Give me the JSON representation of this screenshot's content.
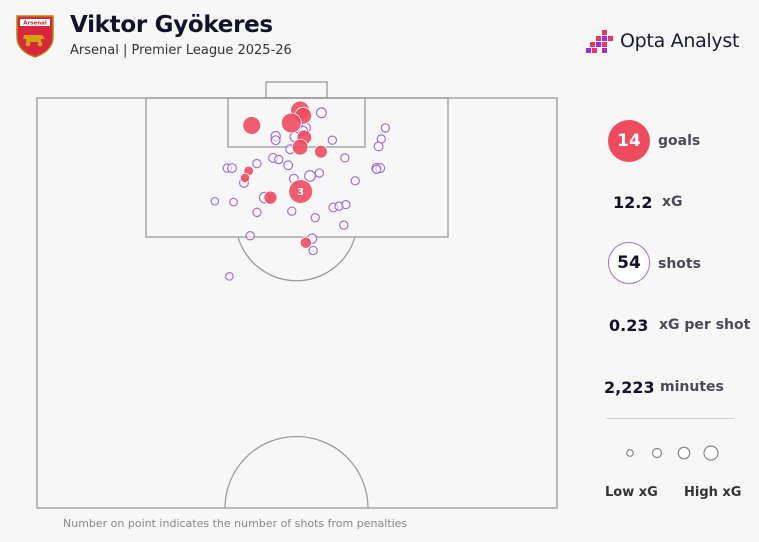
{
  "header": {
    "title": "Viktor Gyökeres",
    "subtitle": "Arsenal | Premier League 2025-26",
    "crest_text": "Arsenal",
    "brand": "Opta Analyst"
  },
  "stats": [
    {
      "value": "14",
      "label": "goals"
    },
    {
      "value": "12.2",
      "label": "xG"
    },
    {
      "value": "54",
      "label": "shots"
    },
    {
      "value": "0.23",
      "label": "xG per shot"
    },
    {
      "value": "2,223",
      "label": "minutes"
    }
  ],
  "legend": {
    "low": "Low xG",
    "high": "High xG"
  },
  "footnote": "Number on point indicates the number of shots from penalties",
  "colors": {
    "goal": "#ef4b5e",
    "shot": "#a46be0",
    "line": "#9a9a9a"
  },
  "chart_data": {
    "type": "scatter",
    "x_axis": "pitch width (0-100)",
    "y_axis": "distance from goal line (0-100 of half pitch shown)",
    "shots": [
      {
        "x": 50.6,
        "y": 3.1,
        "xg": 0.45,
        "goal": true
      },
      {
        "x": 51.2,
        "y": 4.3,
        "xg": 0.32,
        "goal": true
      },
      {
        "x": 48.9,
        "y": 6.1,
        "xg": 0.5,
        "goal": true
      },
      {
        "x": 41.3,
        "y": 6.7,
        "xg": 0.38,
        "goal": true
      },
      {
        "x": 51.4,
        "y": 9.6,
        "xg": 0.22,
        "goal": true
      },
      {
        "x": 50.6,
        "y": 12.0,
        "xg": 0.27,
        "goal": true
      },
      {
        "x": 54.6,
        "y": 13.1,
        "xg": 0.15,
        "goal": true
      },
      {
        "x": 40.7,
        "y": 17.8,
        "xg": 0.06,
        "goal": true
      },
      {
        "x": 40.0,
        "y": 19.5,
        "xg": 0.05,
        "goal": true
      },
      {
        "x": 50.7,
        "y": 22.8,
        "xg": 0.78,
        "goal": true,
        "penalties": 3
      },
      {
        "x": 44.9,
        "y": 24.3,
        "xg": 0.16,
        "goal": true
      },
      {
        "x": 51.7,
        "y": 35.3,
        "xg": 0.1,
        "goal": true
      },
      {
        "x": 54.7,
        "y": 3.6,
        "xg": 0.06,
        "goal": false
      },
      {
        "x": 51.7,
        "y": 7.3,
        "xg": 0.05,
        "goal": false
      },
      {
        "x": 51.2,
        "y": 8.0,
        "xg": 0.04,
        "goal": false
      },
      {
        "x": 45.9,
        "y": 9.3,
        "xg": 0.05,
        "goal": false
      },
      {
        "x": 45.9,
        "y": 10.3,
        "xg": 0.04,
        "goal": false
      },
      {
        "x": 49.6,
        "y": 9.5,
        "xg": 0.06,
        "goal": false
      },
      {
        "x": 67.0,
        "y": 7.3,
        "xg": 0.03,
        "goal": false
      },
      {
        "x": 66.2,
        "y": 10.0,
        "xg": 0.03,
        "goal": false
      },
      {
        "x": 56.8,
        "y": 10.3,
        "xg": 0.03,
        "goal": false
      },
      {
        "x": 65.7,
        "y": 11.8,
        "xg": 0.04,
        "goal": false
      },
      {
        "x": 48.7,
        "y": 12.5,
        "xg": 0.04,
        "goal": false
      },
      {
        "x": 45.4,
        "y": 14.6,
        "xg": 0.04,
        "goal": false
      },
      {
        "x": 46.5,
        "y": 15.0,
        "xg": 0.03,
        "goal": false
      },
      {
        "x": 59.2,
        "y": 14.6,
        "xg": 0.03,
        "goal": false
      },
      {
        "x": 42.3,
        "y": 16.0,
        "xg": 0.03,
        "goal": false
      },
      {
        "x": 48.3,
        "y": 16.4,
        "xg": 0.04,
        "goal": false
      },
      {
        "x": 36.6,
        "y": 17.1,
        "xg": 0.03,
        "goal": false
      },
      {
        "x": 37.5,
        "y": 17.1,
        "xg": 0.04,
        "goal": false
      },
      {
        "x": 65.3,
        "y": 17.1,
        "xg": 0.05,
        "goal": false
      },
      {
        "x": 66.0,
        "y": 17.1,
        "xg": 0.04,
        "goal": false
      },
      {
        "x": 65.3,
        "y": 17.4,
        "xg": 0.03,
        "goal": false
      },
      {
        "x": 52.5,
        "y": 19.0,
        "xg": 0.08,
        "goal": false
      },
      {
        "x": 49.4,
        "y": 19.7,
        "xg": 0.04,
        "goal": false
      },
      {
        "x": 54.3,
        "y": 18.3,
        "xg": 0.03,
        "goal": false
      },
      {
        "x": 61.2,
        "y": 20.2,
        "xg": 0.03,
        "goal": false
      },
      {
        "x": 39.8,
        "y": 20.7,
        "xg": 0.04,
        "goal": false
      },
      {
        "x": 43.8,
        "y": 24.3,
        "xg": 0.08,
        "goal": false
      },
      {
        "x": 34.2,
        "y": 25.2,
        "xg": 0.02,
        "goal": false
      },
      {
        "x": 37.8,
        "y": 25.4,
        "xg": 0.02,
        "goal": false
      },
      {
        "x": 57.0,
        "y": 26.7,
        "xg": 0.04,
        "goal": false
      },
      {
        "x": 58.1,
        "y": 26.4,
        "xg": 0.03,
        "goal": false
      },
      {
        "x": 59.4,
        "y": 26.0,
        "xg": 0.03,
        "goal": false
      },
      {
        "x": 42.3,
        "y": 27.9,
        "xg": 0.03,
        "goal": false
      },
      {
        "x": 49.0,
        "y": 27.6,
        "xg": 0.03,
        "goal": false
      },
      {
        "x": 53.5,
        "y": 29.2,
        "xg": 0.03,
        "goal": false
      },
      {
        "x": 59.0,
        "y": 31.0,
        "xg": 0.03,
        "goal": false
      },
      {
        "x": 41.0,
        "y": 33.6,
        "xg": 0.03,
        "goal": false
      },
      {
        "x": 52.9,
        "y": 34.3,
        "xg": 0.05,
        "goal": false
      },
      {
        "x": 53.1,
        "y": 37.2,
        "xg": 0.03,
        "goal": false
      },
      {
        "x": 37.0,
        "y": 43.5,
        "xg": 0.02,
        "goal": false
      }
    ],
    "legend_sizes": [
      0.05,
      0.15,
      0.3,
      0.5
    ]
  }
}
